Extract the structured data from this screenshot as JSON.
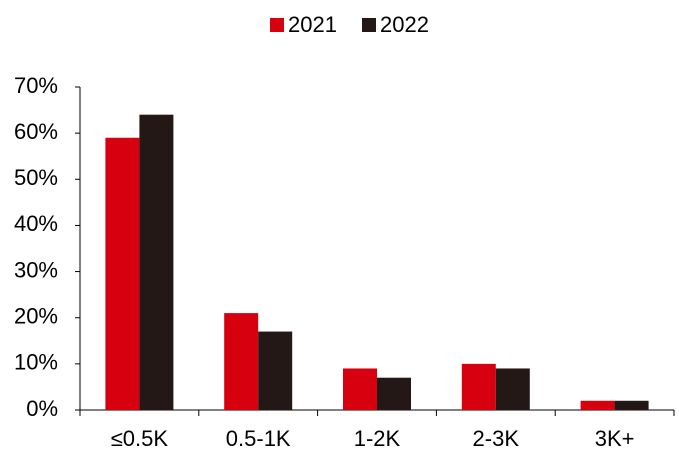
{
  "chart_data": {
    "type": "bar",
    "categories": [
      "≤0.5K",
      "0.5-1K",
      "1-2K",
      "2-3K",
      "3K+"
    ],
    "series": [
      {
        "name": "2021",
        "color": "#d7000f",
        "values": [
          59,
          21,
          9,
          10,
          2
        ]
      },
      {
        "name": "2022",
        "color": "#231815",
        "values": [
          64,
          17,
          7,
          9,
          2
        ]
      }
    ],
    "ylim": [
      0,
      70
    ],
    "yticks": [
      {
        "value": 0,
        "label": "0%"
      },
      {
        "value": 10,
        "label": "10%"
      },
      {
        "value": 20,
        "label": "20%"
      },
      {
        "value": 30,
        "label": "30%"
      },
      {
        "value": 40,
        "label": "40%"
      },
      {
        "value": 50,
        "label": "50%"
      },
      {
        "value": 60,
        "label": "60%"
      },
      {
        "value": 70,
        "label": "70%"
      }
    ],
    "legend": "top"
  }
}
